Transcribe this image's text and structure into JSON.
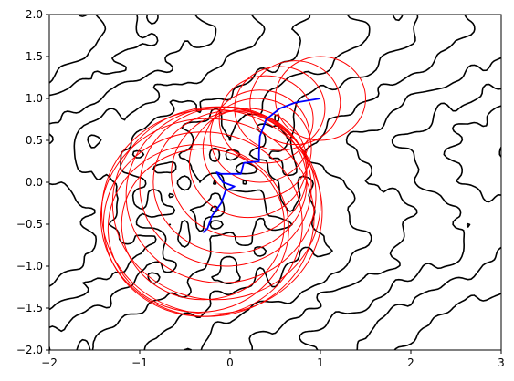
{
  "chart_data": {
    "type": "contour",
    "title": "",
    "xlabel": "",
    "ylabel": "",
    "xlim": [
      -2,
      3
    ],
    "ylim": [
      -2,
      2
    ],
    "grid": false,
    "legend": "none",
    "x_ticks": [
      "−2",
      "−1",
      "0",
      "1",
      "2",
      "3"
    ],
    "y_ticks": [
      "−2.0",
      "−1.5",
      "−1.0",
      "−0.5",
      "0.0",
      "0.5",
      "1.0",
      "1.5",
      "2.0"
    ],
    "x_tick_values": [
      -2,
      -1,
      0,
      1,
      2,
      3
    ],
    "y_tick_values": [
      -2,
      -1.5,
      -1,
      -0.5,
      0,
      0.5,
      1,
      1.5,
      2
    ],
    "contour_color": "#000000",
    "circle_color": "#ff0000",
    "path_color": "#0000ff",
    "path": [
      [
        1.0,
        1.0
      ],
      [
        0.72,
        0.95
      ],
      [
        0.55,
        0.88
      ],
      [
        0.4,
        0.75
      ],
      [
        0.33,
        0.55
      ],
      [
        0.32,
        0.35
      ],
      [
        0.32,
        0.25
      ],
      [
        0.15,
        0.23
      ],
      [
        0.12,
        0.1
      ],
      [
        -0.1,
        0.1
      ],
      [
        -0.15,
        0.12
      ],
      [
        -0.08,
        0.0
      ],
      [
        0.05,
        -0.05
      ],
      [
        -0.05,
        -0.1
      ],
      [
        -0.1,
        -0.25
      ],
      [
        -0.2,
        -0.4
      ],
      [
        -0.25,
        -0.55
      ],
      [
        -0.3,
        -0.6
      ]
    ],
    "circles": [
      {
        "x": 1.0,
        "y": 1.0,
        "r": 0.5
      },
      {
        "x": 0.72,
        "y": 0.95,
        "r": 0.5
      },
      {
        "x": 0.55,
        "y": 0.88,
        "r": 0.5
      },
      {
        "x": 0.4,
        "y": 0.75,
        "r": 0.52
      },
      {
        "x": 0.33,
        "y": 0.55,
        "r": 0.55
      },
      {
        "x": 0.3,
        "y": 0.4,
        "r": 0.6
      },
      {
        "x": 0.2,
        "y": 0.23,
        "r": 0.65
      },
      {
        "x": 0.1,
        "y": 0.1,
        "r": 0.75
      },
      {
        "x": 0.0,
        "y": 0.0,
        "r": 0.85
      },
      {
        "x": -0.05,
        "y": -0.05,
        "r": 0.95
      },
      {
        "x": -0.1,
        "y": -0.15,
        "r": 1.05
      },
      {
        "x": -0.15,
        "y": -0.25,
        "r": 1.15
      },
      {
        "x": -0.2,
        "y": -0.35,
        "r": 1.22
      },
      {
        "x": -0.25,
        "y": -0.42,
        "r": 1.18
      },
      {
        "x": -0.3,
        "y": -0.5,
        "r": 1.1
      },
      {
        "x": -0.35,
        "y": -0.55,
        "r": 1.0
      },
      {
        "x": -0.3,
        "y": -0.5,
        "r": 0.9
      }
    ],
    "contour_levels": [
      -7.5,
      -6.0,
      -4.5,
      -3.0,
      -1.5,
      0.0,
      1.5,
      3.0,
      4.5,
      6.0,
      7.5,
      9.0
    ]
  }
}
